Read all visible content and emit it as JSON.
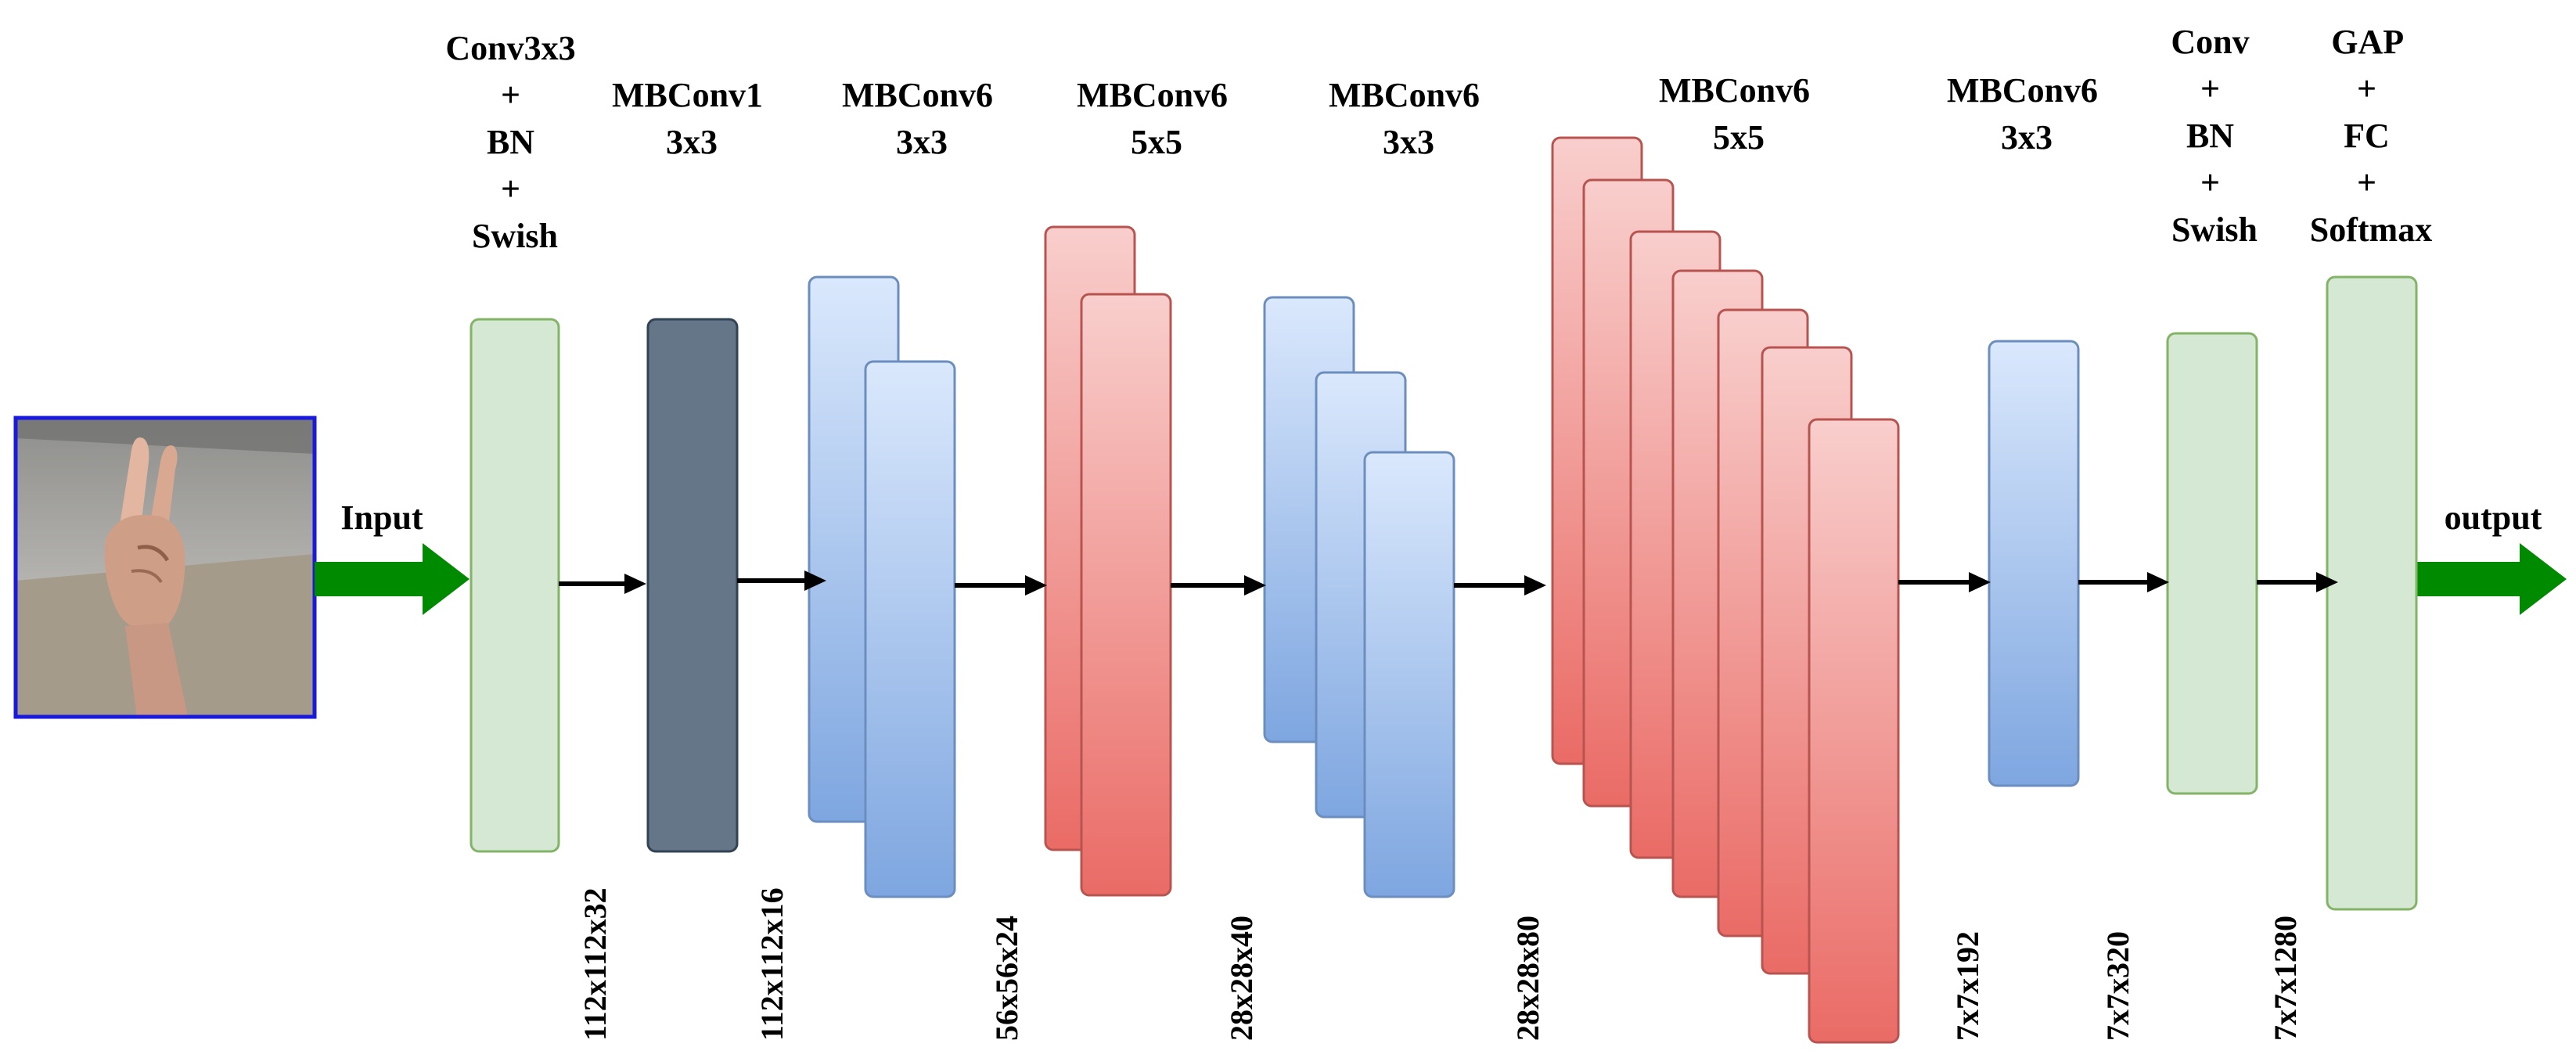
{
  "input_label": "Input",
  "output_label": "output",
  "stages": [
    {
      "lines": [
        "Conv3x3",
        "+",
        "BN",
        "+",
        "Swish"
      ],
      "dim": "112x112x32",
      "style": "green"
    },
    {
      "lines": [
        "MBConv1",
        "3x3"
      ],
      "dim": "112x112x16",
      "style": "slate"
    },
    {
      "lines": [
        "MBConv6",
        "3x3"
      ],
      "dim": "56x56x24",
      "style": "blue"
    },
    {
      "lines": [
        "MBConv6",
        "5x5"
      ],
      "dim": "28x28x40",
      "style": "red"
    },
    {
      "lines": [
        "MBConv6",
        "3x3"
      ],
      "dim": "28x28x80",
      "style": "blue"
    },
    {
      "lines": [
        "MBConv6",
        "5x5"
      ],
      "dim": "7x7x192",
      "style": "red"
    },
    {
      "lines": [
        "MBConv6",
        "3x3"
      ],
      "dim": "7x7x320",
      "style": "blue"
    },
    {
      "lines": [
        "Conv",
        "+",
        "BN",
        "+",
        "Swish"
      ],
      "dim": "7x7x1280",
      "style": "green"
    },
    {
      "lines": [
        "GAP",
        "+",
        "FC",
        "+",
        "Softmax"
      ],
      "style": "green"
    }
  ],
  "colors": {
    "green_fill": "#d5e8d4",
    "green_stroke": "#82b366",
    "slate_fill": "#647687",
    "slate_stroke": "#314354",
    "blue_top": "#dae8fc",
    "blue_bottom": "#7ea6e0",
    "blue_stroke": "#6c8ebf",
    "red_top": "#f8cecc",
    "red_bottom": "#ea6b66",
    "red_stroke": "#b85450",
    "arrow_big": "#008a00",
    "arrow_small": "#000000"
  }
}
